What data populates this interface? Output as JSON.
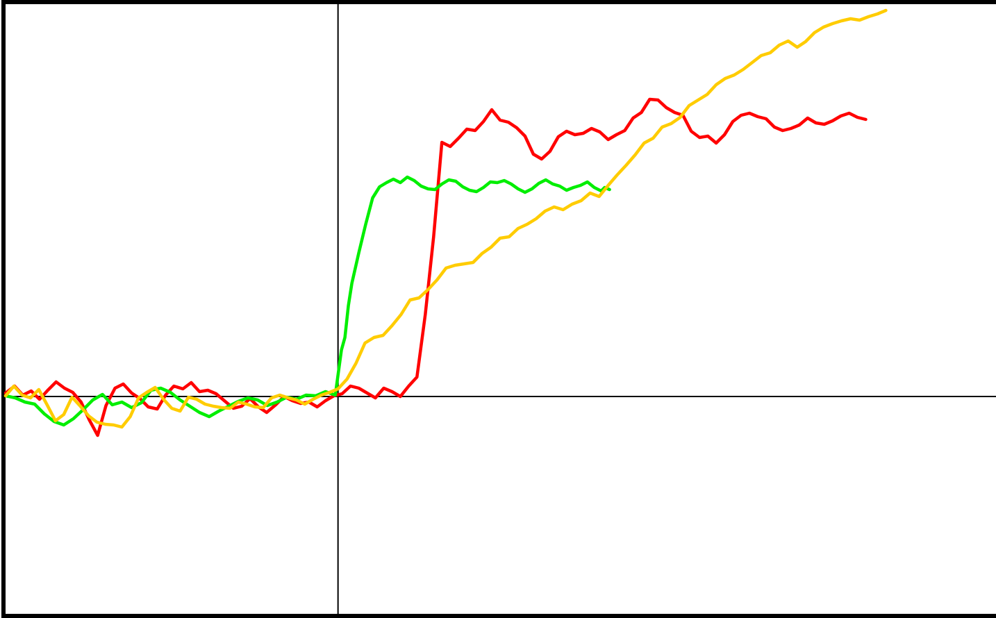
{
  "chart_data": {
    "type": "line",
    "title": "",
    "xlabel": "",
    "ylabel": "",
    "xlim": [
      -48,
      95
    ],
    "ylim": [
      -31.6,
      56.6
    ],
    "grid": false,
    "axes": {
      "vertical_at_x": 0,
      "horizontal_at_y": 0
    },
    "series": [
      {
        "color": "#ff0000",
        "x": [
          -48,
          -46.7,
          -45.5,
          -44.3,
          -43.1,
          -41.9,
          -40.7,
          -39.5,
          -38.3,
          -37.1,
          -35.9,
          -34.7,
          -33.5,
          -32.2,
          -31,
          -29.8,
          -28.6,
          -27.4,
          -26.1,
          -24.9,
          -23.7,
          -22.4,
          -21.2,
          -20,
          -18.8,
          -17.6,
          -16.3,
          -15.1,
          -13.9,
          -12.7,
          -11.5,
          -10.3,
          -9,
          -7.8,
          -6.6,
          -5.4,
          -4.2,
          -3,
          -1.8,
          -0.6,
          0.6,
          1.8,
          3,
          4.2,
          5.4,
          6.6,
          7.8,
          9,
          10.2,
          11.4,
          12.6,
          13.8,
          15,
          16.2,
          17.4,
          18.6,
          19.8,
          21,
          22.2,
          23.4,
          24.6,
          25.8,
          27,
          28.2,
          29.4,
          30.6,
          31.8,
          33,
          34.2,
          35.4,
          36.6,
          37.8,
          39,
          40.2,
          41.4,
          42.6,
          43.8,
          45,
          46.2,
          47.4,
          48.6,
          49.8,
          51,
          52.2,
          53.4,
          54.6,
          55.8,
          57,
          58.2,
          59.4,
          60.6,
          61.8,
          63,
          64.2,
          65.4,
          66.6,
          67.8,
          69,
          70.2,
          71.4,
          72.6,
          73.8,
          75,
          76.2
        ],
        "y": [
          0.5,
          1.5,
          0.2,
          0.8,
          -0.4,
          0.9,
          2.1,
          1.2,
          0.6,
          -0.8,
          -3.4,
          -5.6,
          -1.3,
          1.2,
          1.8,
          0.5,
          -0.3,
          -1.5,
          -1.8,
          0.2,
          1.5,
          1.1,
          2,
          0.7,
          0.9,
          0.4,
          -0.7,
          -1.7,
          -1.4,
          -0.3,
          -1.5,
          -2.3,
          -1.2,
          0,
          -0.6,
          -1,
          -0.8,
          -1.5,
          -0.6,
          0.1,
          0.4,
          1.5,
          1.2,
          0.5,
          -0.2,
          1.2,
          0.7,
          0,
          1.5,
          2.8,
          11.8,
          23,
          36.6,
          36,
          37.2,
          38.5,
          38.3,
          39.6,
          41.3,
          39.8,
          39.5,
          38.7,
          37.5,
          34.9,
          34.2,
          35.3,
          37.4,
          38.2,
          37.7,
          37.9,
          38.6,
          38.1,
          37,
          37.7,
          38.3,
          40.1,
          40.9,
          42.8,
          42.7,
          41.6,
          40.9,
          40.5,
          38.2,
          37.3,
          37.5,
          36.5,
          37.7,
          39.6,
          40.5,
          40.8,
          40.3,
          40,
          38.8,
          38.3,
          38.6,
          39.1,
          40.1,
          39.4,
          39.2,
          39.7,
          40.4,
          40.8,
          40.2,
          39.9
        ]
      },
      {
        "color": "#00ee00",
        "x": [
          -48,
          -46.6,
          -45.2,
          -43.8,
          -42.4,
          -41,
          -39.6,
          -38.2,
          -36.8,
          -35.4,
          -34,
          -32.6,
          -31.2,
          -29.8,
          -28.4,
          -27,
          -25.6,
          -24.2,
          -22.8,
          -21.4,
          -20,
          -18.6,
          -17.2,
          -15.8,
          -14.4,
          -13,
          -11.6,
          -10.2,
          -8.8,
          -7.4,
          -6,
          -4.6,
          -3.2,
          -1.8,
          -0.4,
          0.5,
          1,
          1.5,
          2,
          3,
          4,
          5,
          6,
          7,
          8,
          9,
          10,
          11,
          12,
          13,
          14,
          15,
          16,
          17,
          18,
          19,
          20,
          21,
          22,
          23,
          24,
          25,
          26,
          27,
          28,
          29,
          30,
          31,
          32,
          33,
          34,
          35,
          36,
          37,
          38,
          38.5,
          39.2
        ],
        "y": [
          0.1,
          -0.2,
          -0.8,
          -1.1,
          -2.5,
          -3.6,
          -4.1,
          -3.2,
          -1.9,
          -0.5,
          0.3,
          -1.2,
          -0.8,
          -1.6,
          -0.9,
          0.9,
          1.2,
          0.6,
          -0.5,
          -1.4,
          -2.3,
          -2.9,
          -2.1,
          -1.4,
          -0.7,
          -0.2,
          -0.5,
          -1.3,
          -0.8,
          -0.1,
          -0.4,
          0.2,
          0.1,
          0.7,
          0.2,
          6.7,
          8.5,
          13.1,
          16.3,
          20.7,
          24.8,
          28.6,
          30.2,
          30.8,
          31.3,
          30.8,
          31.6,
          31.1,
          30.3,
          29.9,
          29.8,
          30.6,
          31.2,
          31,
          30.2,
          29.7,
          29.5,
          30.1,
          30.9,
          30.8,
          31.1,
          30.6,
          29.9,
          29.4,
          29.9,
          30.7,
          31.2,
          30.6,
          30.3,
          29.7,
          30.1,
          30.4,
          30.9,
          30.1,
          29.6,
          30.1,
          29.8
        ]
      },
      {
        "color": "#ffcc00",
        "x": [
          -48,
          -46.8,
          -45.6,
          -44.4,
          -43.2,
          -42,
          -40.8,
          -39.6,
          -38.4,
          -37.2,
          -36,
          -34.8,
          -33.6,
          -32.4,
          -31.2,
          -30,
          -28.8,
          -27.6,
          -26.4,
          -25.2,
          -24,
          -22.8,
          -21.6,
          -20.4,
          -19.2,
          -18,
          -16.8,
          -15.6,
          -14.4,
          -13.2,
          -12,
          -10.8,
          -9.6,
          -8.4,
          -7.2,
          -6,
          -4.8,
          -3.6,
          -2.4,
          -1.2,
          0,
          1.3,
          2.6,
          3.9,
          5.2,
          6.5,
          7.8,
          9.1,
          10.4,
          11.7,
          13,
          14.3,
          15.6,
          16.9,
          18.2,
          19.5,
          20.8,
          22.1,
          23.4,
          24.7,
          26,
          27.3,
          28.6,
          29.9,
          31.2,
          32.5,
          33.8,
          35.1,
          36.4,
          37.7,
          39,
          40.3,
          41.6,
          42.9,
          44.2,
          45.5,
          46.8,
          48.1,
          49.4,
          50.7,
          52,
          53.3,
          54.6,
          55.9,
          57.2,
          58.5,
          59.8,
          61.1,
          62.4,
          63.7,
          65,
          66.3,
          67.5,
          68.8,
          70.1,
          71.4,
          72.7,
          74,
          75.3,
          76.6,
          77.9,
          79.1
        ],
        "y": [
          0.1,
          1.5,
          0.2,
          -0.2,
          1,
          -1.2,
          -3.5,
          -2.6,
          -0.1,
          -1.4,
          -2.8,
          -3.7,
          -4,
          -4.1,
          -4.4,
          -2.9,
          -0.2,
          0.6,
          1.3,
          -0.4,
          -1.7,
          -2.1,
          -0.1,
          -0.4,
          -1.1,
          -1.4,
          -1.6,
          -1.7,
          -0.8,
          -1.1,
          -1.5,
          -1.6,
          -0.2,
          0.2,
          -0.2,
          -0.5,
          -1.1,
          -0.4,
          0.2,
          0.6,
          1.1,
          2.5,
          4.8,
          7.7,
          8.5,
          8.8,
          10.2,
          11.8,
          13.9,
          14.2,
          15.4,
          16.8,
          18.5,
          18.9,
          19.1,
          19.3,
          20.6,
          21.5,
          22.8,
          23,
          24.2,
          24.8,
          25.6,
          26.7,
          27.3,
          26.9,
          27.7,
          28.2,
          29.3,
          28.8,
          30.4,
          31.9,
          33.3,
          34.8,
          36.5,
          37.2,
          38.8,
          39.3,
          40.2,
          41.9,
          42.7,
          43.5,
          44.9,
          45.8,
          46.3,
          47.1,
          48.1,
          49.1,
          49.5,
          50.6,
          51.2,
          50.3,
          51.1,
          52.4,
          53.2,
          53.7,
          54.1,
          54.4,
          54.2,
          54.7,
          55.1,
          55.6
        ]
      }
    ]
  }
}
